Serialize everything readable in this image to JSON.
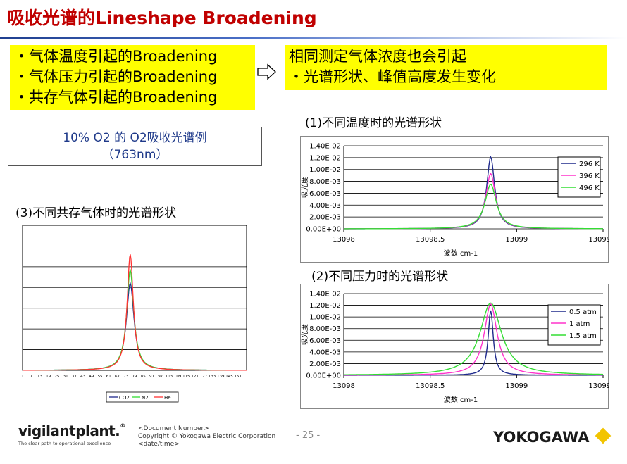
{
  "title": "吸收光谱的Lineshape Broadening",
  "left_box": {
    "lines": [
      "・气体温度引起的Broadening",
      "・气体压力引起的Broadening",
      "・共存气体引起的Broadening"
    ]
  },
  "right_box": {
    "lines": [
      "相同测定气体浓度也会引起",
      "・光谱形状、峰值高度发生变化"
    ]
  },
  "o2_box": {
    "line1": "10%  O2 的   O2吸收光谱例",
    "line2": "（763nm）"
  },
  "captions": {
    "temp": "(1)不同温度时的光谱形状",
    "pressure": "(2)不同压力时的光谱形状",
    "coexist": "(3)不同共存气体时的光谱形状"
  },
  "footer": {
    "logo_main": "vigilantplant.",
    "logo_sub": "The clear path to operational excellence",
    "doc_number": "<Document  Number>",
    "copyright": "Copyright © Yokogawa Electric Corporation",
    "date": "<date/time>",
    "page": "- 25 -",
    "brand": "YOKOGAWA"
  },
  "colors": {
    "title": "#c00000",
    "highlight": "#ffff00",
    "o2_text": "#1f3a8a",
    "brand_diamond": "#f2c400"
  },
  "chart_data": [
    {
      "id": "temperature",
      "type": "line",
      "ylabel": "吸光度",
      "xlabel": "波数  cm-1",
      "xlim": [
        13098,
        13099.5
      ],
      "ylim": [
        0,
        0.014
      ],
      "x_ticks": [
        "13098",
        "13098.5",
        "13099",
        "13099.5"
      ],
      "y_ticks": [
        "0.00E+00",
        "2.00E-03",
        "4.00E-03",
        "6.00E-03",
        "8.00E-03",
        "1.00E-02",
        "1.20E-02",
        "1.40E-02"
      ],
      "center": 13098.85,
      "series": [
        {
          "name": "296 K",
          "color": "#1f2a8c",
          "peak": 0.0121,
          "hwhm": 0.028
        },
        {
          "name": "396 K",
          "color": "#ff33cc",
          "peak": 0.0093,
          "hwhm": 0.034
        },
        {
          "name": "496 K",
          "color": "#33dd33",
          "peak": 0.0075,
          "hwhm": 0.04
        }
      ]
    },
    {
      "id": "pressure",
      "type": "line",
      "ylabel": "吸光度",
      "xlabel": "波数  cm-1",
      "xlim": [
        13098,
        13099.5
      ],
      "ylim": [
        0,
        0.014
      ],
      "x_ticks": [
        "13098",
        "13098.5",
        "13099",
        "13099.5"
      ],
      "y_ticks": [
        "0.00E+00",
        "2.00E-03",
        "4.00E-03",
        "6.00E-03",
        "8.00E-03",
        "1.00E-02",
        "1.20E-02",
        "1.40E-02"
      ],
      "center": 13098.85,
      "series": [
        {
          "name": "0.5 atm",
          "color": "#1f2a8c",
          "peak": 0.0111,
          "hwhm": 0.018
        },
        {
          "name": "1 atm",
          "color": "#ff33cc",
          "peak": 0.0122,
          "hwhm": 0.045
        },
        {
          "name": "1.5 atm",
          "color": "#33dd33",
          "peak": 0.0124,
          "hwhm": 0.075
        }
      ]
    },
    {
      "id": "coexisting",
      "type": "line",
      "x_ticks": [
        "1",
        "7",
        "13",
        "19",
        "25",
        "31",
        "37",
        "43",
        "49",
        "55",
        "61",
        "67",
        "73",
        "79",
        "85",
        "91",
        "97",
        "103",
        "109",
        "115",
        "121",
        "127",
        "133",
        "139",
        "145",
        "151"
      ],
      "xlim": [
        1,
        157
      ],
      "ylim": [
        0,
        1
      ],
      "center": 76,
      "series": [
        {
          "name": "CO2",
          "color": "#1f2a8c",
          "peak": 0.6,
          "hwhm": 3.2
        },
        {
          "name": "N2",
          "color": "#33dd33",
          "peak": 0.69,
          "hwhm": 3.0
        },
        {
          "name": "He",
          "color": "#ff3333",
          "peak": 0.8,
          "hwhm": 2.6
        }
      ]
    }
  ]
}
